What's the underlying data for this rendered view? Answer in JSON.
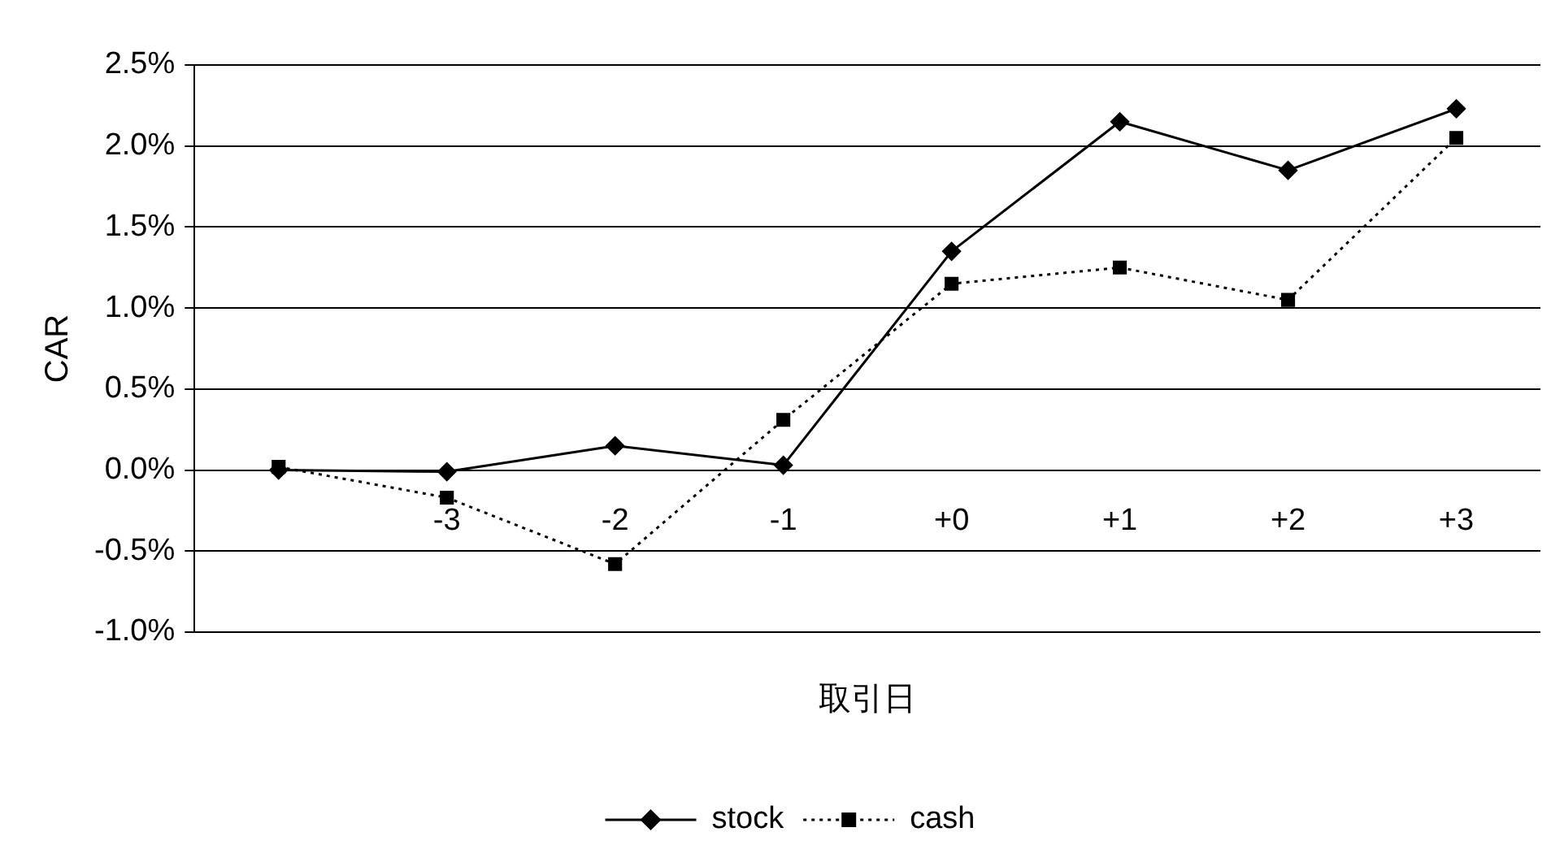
{
  "chart_data": {
    "type": "line",
    "xlabel": "取引日",
    "ylabel": "CAR",
    "categories": [
      null,
      "-3",
      "-2",
      "-1",
      "+0",
      "+1",
      "+2",
      "+3"
    ],
    "series": [
      {
        "name": "stock",
        "color": "#000000",
        "marker": "diamond",
        "line_style": "solid",
        "values": [
          0.0,
          -0.01,
          0.15,
          0.03,
          1.35,
          2.15,
          1.85,
          2.23
        ]
      },
      {
        "name": "cash",
        "color": "#000000",
        "marker": "square",
        "line_style": "dotted",
        "values": [
          0.02,
          -0.17,
          -0.58,
          0.31,
          1.15,
          1.25,
          1.05,
          2.05
        ]
      }
    ],
    "ylim": [
      -1.0,
      2.5
    ],
    "yticks": [
      {
        "value": -1.0,
        "label": "-1.0%"
      },
      {
        "value": -0.5,
        "label": "-0.5%"
      },
      {
        "value": 0,
        "label": "0.0%"
      },
      {
        "value": 0.5,
        "label": "0.5%"
      },
      {
        "value": 1.0,
        "label": "1.0%"
      },
      {
        "value": 1.5,
        "label": "1.5%"
      },
      {
        "value": 2.0,
        "label": "2.0%"
      },
      {
        "value": 2.5,
        "label": "2.5%"
      }
    ],
    "grid": "y",
    "legend": "bottom"
  }
}
